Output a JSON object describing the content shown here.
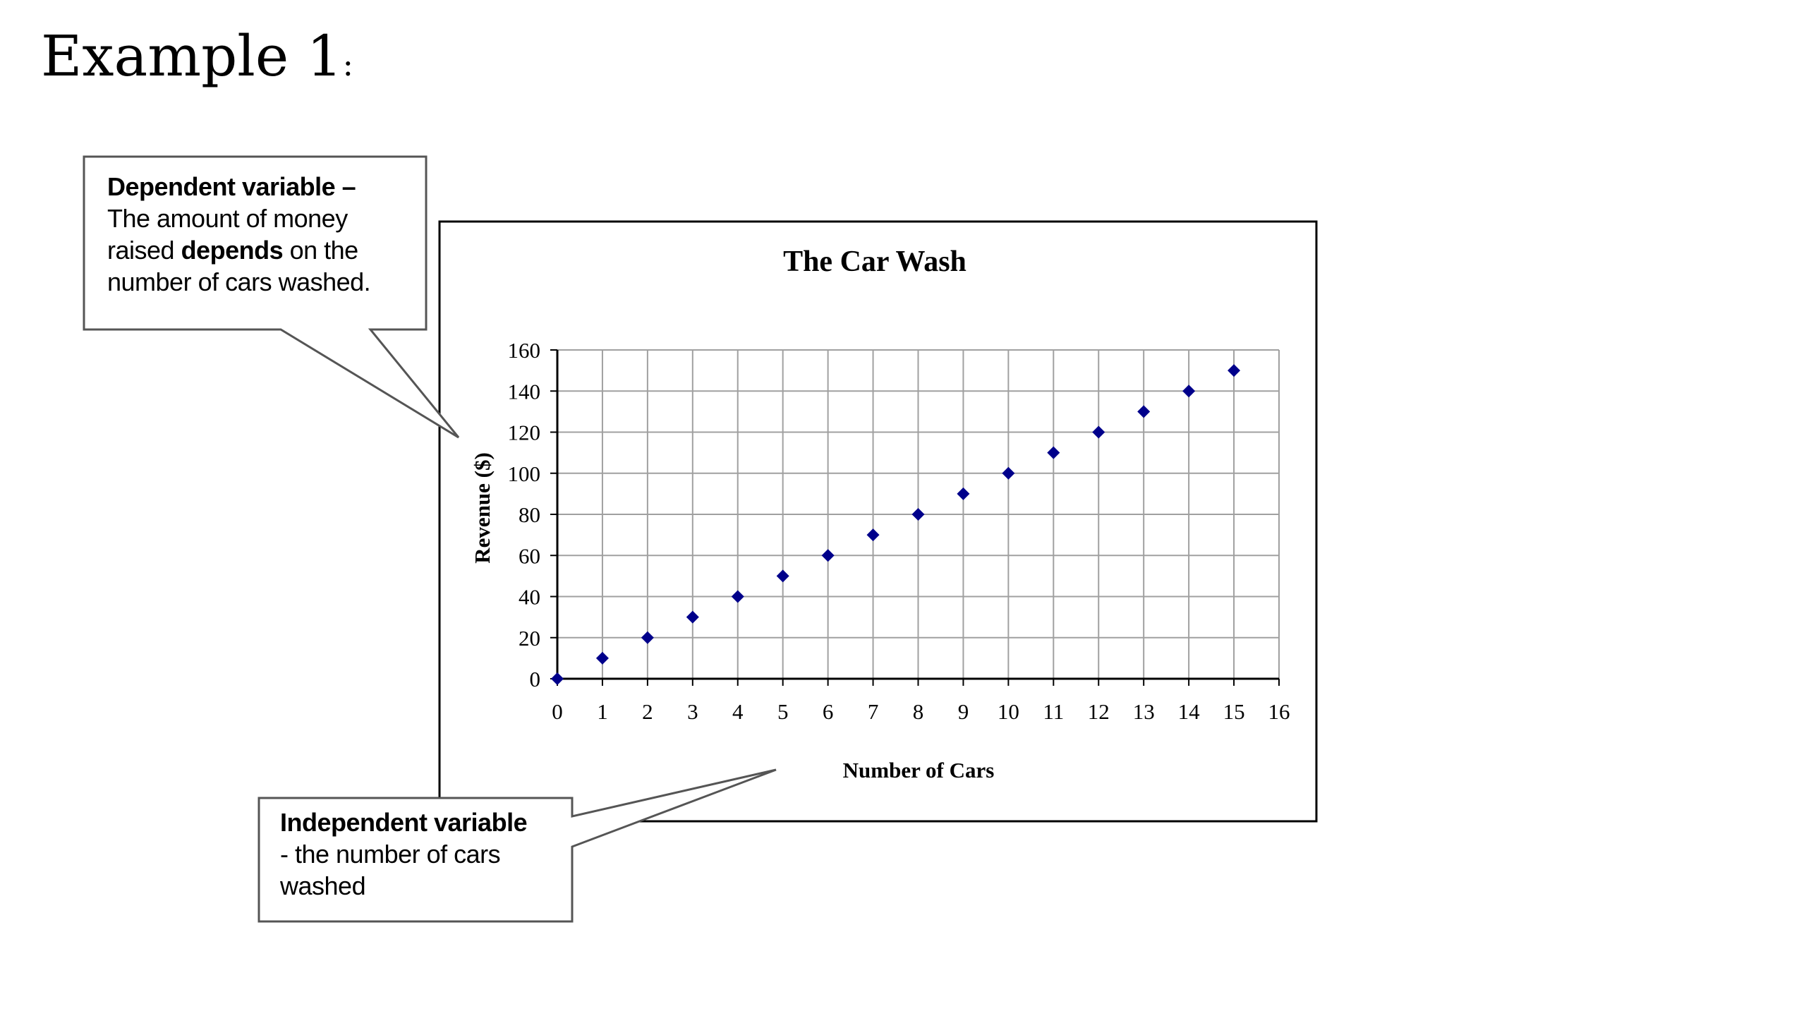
{
  "page": {
    "heading_main": "Example 1",
    "heading_suffix": ":"
  },
  "callouts": {
    "dependent": {
      "title": "Dependent variable –",
      "line1": "The amount of money",
      "line2_prefix": "raised ",
      "line2_bold": "depends",
      "line2_suffix": " on the",
      "line3": "number of cars washed."
    },
    "independent": {
      "title": "Independent variable",
      "line1": "- the number of cars",
      "line2": "washed"
    }
  },
  "colors": {
    "marker": "#00008B",
    "grid": "#a0a0a0",
    "axis": "#000000",
    "frame": "#000000"
  },
  "chart_data": {
    "type": "scatter",
    "title": "The Car Wash",
    "xlabel": "Number of Cars",
    "ylabel": "Revenue ($)",
    "xlim": [
      0,
      16
    ],
    "ylim": [
      0,
      160
    ],
    "xticks": [
      0,
      1,
      2,
      3,
      4,
      5,
      6,
      7,
      8,
      9,
      10,
      11,
      12,
      13,
      14,
      15,
      16
    ],
    "yticks": [
      0,
      20,
      40,
      60,
      80,
      100,
      120,
      140,
      160
    ],
    "grid": true,
    "marker": "diamond",
    "x": [
      0,
      1,
      2,
      3,
      4,
      5,
      6,
      7,
      8,
      9,
      10,
      11,
      12,
      13,
      14,
      15
    ],
    "y": [
      0,
      10,
      20,
      30,
      40,
      50,
      60,
      70,
      80,
      90,
      100,
      110,
      120,
      130,
      140,
      150
    ]
  }
}
